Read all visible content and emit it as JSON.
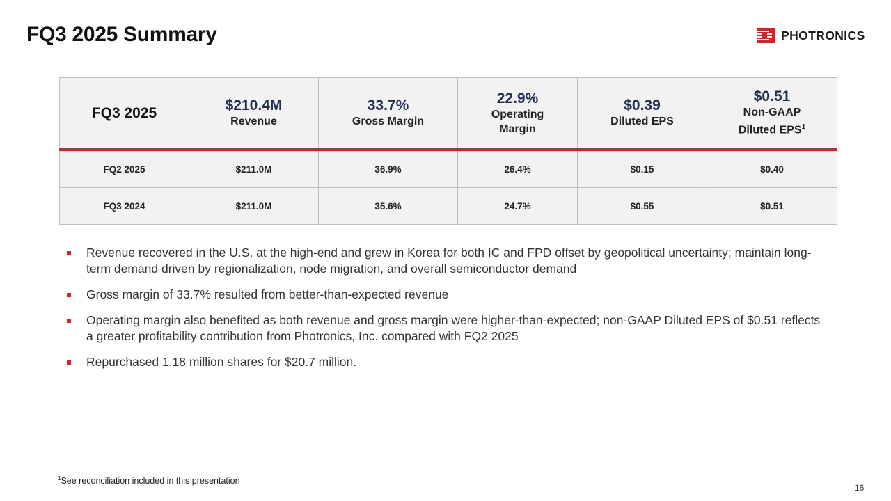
{
  "title": "FQ3 2025 Summary",
  "logo": {
    "text": "PHOTRONICS",
    "color": "#e01e26"
  },
  "accent_color": "#e01e26",
  "table": {
    "header": {
      "label": "FQ3 2025",
      "revenue": {
        "value": "$210.4M",
        "label": "Revenue"
      },
      "gross_margin": {
        "value": "33.7%",
        "label": "Gross Margin"
      },
      "operating_margin": {
        "value": "22.9%",
        "label_line1": "Operating",
        "label_line2": "Margin"
      },
      "diluted_eps": {
        "value": "$0.39",
        "label": "Diluted EPS"
      },
      "non_gaap_eps": {
        "value": "$0.51",
        "label_line1": "Non-GAAP",
        "label_line2": "Diluted EPS",
        "sup": "1"
      }
    },
    "rows": [
      {
        "period": "FQ2 2025",
        "revenue": "$211.0M",
        "gross_margin": "36.9%",
        "operating_margin": "26.4%",
        "diluted_eps": "$0.15",
        "non_gaap_eps": "$0.40"
      },
      {
        "period": "FQ3 2024",
        "revenue": "$211.0M",
        "gross_margin": "35.6%",
        "operating_margin": "24.7%",
        "diluted_eps": "$0.55",
        "non_gaap_eps": "$0.51"
      }
    ]
  },
  "bullets": [
    "Revenue recovered in the U.S. at the high-end and grew in Korea for both IC and FPD offset by geopolitical uncertainty; maintain long-term demand driven by regionalization, node migration, and overall semiconductor demand",
    "Gross margin of 33.7% resulted from better-than-expected revenue",
    "Operating margin also benefited as both revenue and gross margin were higher-than-expected; non-GAAP Diluted EPS of $0.51 reflects a greater profitability contribution from Photronics, Inc. compared with FQ2 2025",
    "Repurchased 1.18 million shares for $20.7 million."
  ],
  "footnote": {
    "sup": "1",
    "text": "See reconciliation included in this presentation"
  },
  "page_number": "16"
}
